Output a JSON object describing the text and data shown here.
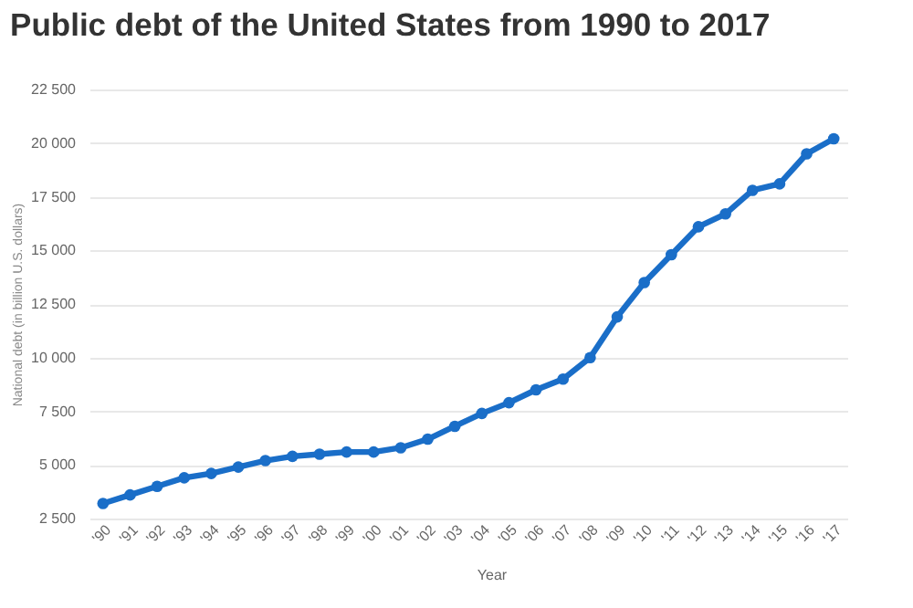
{
  "chart_data": {
    "type": "line",
    "title": "Public debt of the United States from 1990 to 2017",
    "xlabel": "Year",
    "ylabel": "National debt (in billion U.S. dollars)",
    "categories": [
      "'90",
      "'91",
      "'92",
      "'93",
      "'94",
      "'95",
      "'96",
      "'97",
      "'98",
      "'99",
      "'00",
      "'01",
      "'02",
      "'03",
      "'04",
      "'05",
      "'06",
      "'07",
      "'08",
      "'09",
      "'10",
      "'11",
      "'12",
      "'13",
      "'14",
      "'15",
      "'16",
      "'17"
    ],
    "series": [
      {
        "color": "#1a6ec8",
        "values": [
          3200,
          3600,
          4000,
          4400,
          4600,
          4900,
          5200,
          5400,
          5500,
          5600,
          5600,
          5800,
          6200,
          6800,
          7400,
          7900,
          8500,
          9000,
          10000,
          11900,
          13500,
          14800,
          16100,
          16700,
          17800,
          18100,
          19500,
          20200
        ]
      }
    ],
    "ylim": [
      2500,
      22500
    ],
    "yticks": [
      {
        "value": 2500,
        "label": "2 500"
      },
      {
        "value": 5000,
        "label": "5 000"
      },
      {
        "value": 7500,
        "label": "7 500"
      },
      {
        "value": 10000,
        "label": "10 000"
      },
      {
        "value": 12500,
        "label": "12 500"
      },
      {
        "value": 15000,
        "label": "15 000"
      },
      {
        "value": 17500,
        "label": "17 500"
      },
      {
        "value": 20000,
        "label": "20 000"
      },
      {
        "value": 22500,
        "label": "22 500"
      }
    ],
    "grid": "y",
    "marker": "circle",
    "line_style": "solid"
  }
}
